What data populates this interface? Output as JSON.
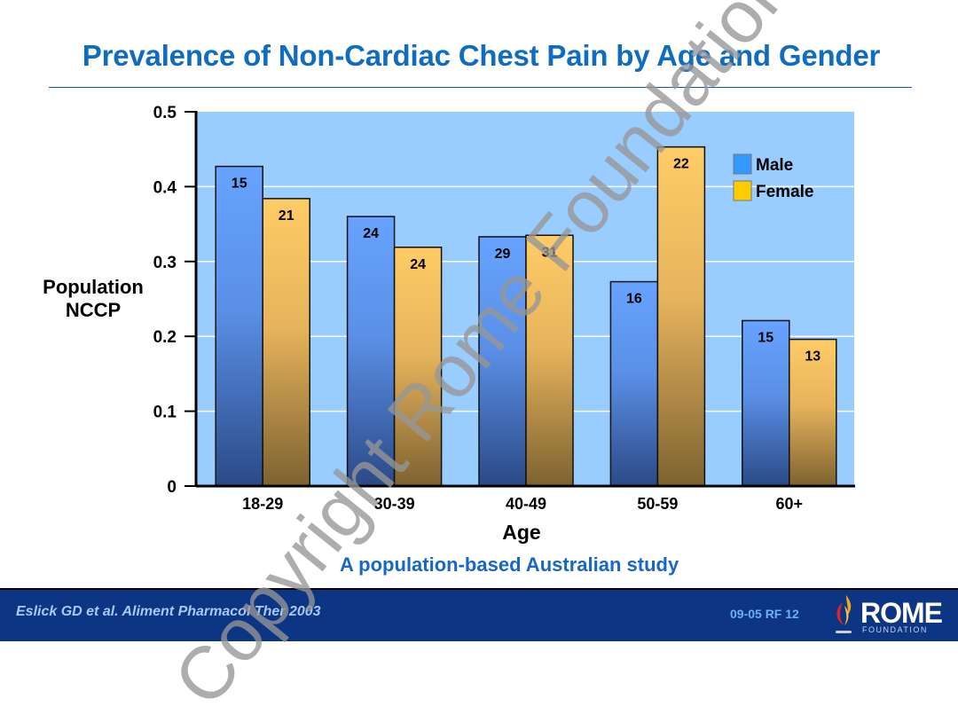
{
  "slide": {
    "title": "Prevalence of Non-Cardiac Chest Pain by Age and Gender",
    "subtitle": "A population-based Australian study",
    "watermark": "Copyright Rome Foundation",
    "footer": {
      "citation": "Eslick GD et al. Aliment Pharmacol Ther 2003",
      "slide_id": "09-05  RF 12",
      "logo_word": "ROME",
      "logo_sub": "FOUNDATION"
    }
  },
  "colors": {
    "plot_bg": "#99ccff",
    "male": "#3399ff",
    "female": "#ffcc00",
    "title": "#0f6cc0",
    "footer_bg": "#0c3584"
  },
  "chart_data": {
    "type": "bar",
    "title": "Prevalence of Non-Cardiac Chest Pain by Age and Gender",
    "xlabel": "Age",
    "ylabel": "Population NCCP",
    "ylabel_lines": [
      "Population",
      "NCCP"
    ],
    "ylim": [
      0,
      0.5
    ],
    "yticks": [
      0,
      0.1,
      0.2,
      0.3,
      0.4,
      0.5
    ],
    "ytick_labels": [
      "0",
      "0.1",
      "0.2",
      "0.3",
      "0.4",
      "0.5"
    ],
    "grid": true,
    "legend_position": "top-right",
    "categories": [
      "18-29",
      "30-39",
      "40-49",
      "50-59",
      "60+"
    ],
    "series": [
      {
        "name": "Male",
        "values": [
          0.427,
          0.36,
          0.333,
          0.273,
          0.221
        ],
        "labels": [
          "15",
          "24",
          "29",
          "16",
          "15"
        ]
      },
      {
        "name": "Female",
        "values": [
          0.384,
          0.319,
          0.335,
          0.453,
          0.196
        ],
        "labels": [
          "21",
          "24",
          "31",
          "22",
          "13"
        ]
      }
    ]
  }
}
